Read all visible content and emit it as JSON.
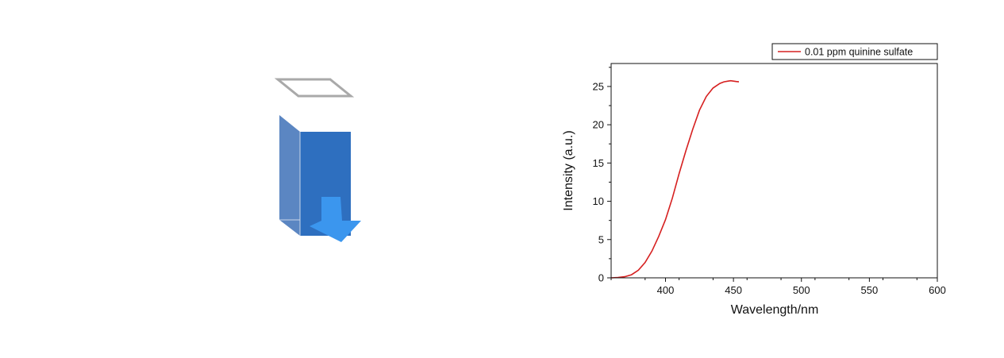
{
  "illustration": {
    "icon": "cuvette-with-emission-arrow-icon",
    "colors": {
      "lid": "#a9a9a9",
      "front_face": "#2e6fbf",
      "side_face": "#5b86c2",
      "arrow": "#3b96ee"
    }
  },
  "chart_data": {
    "type": "line",
    "title": "",
    "xlabel": "Wavelength/nm",
    "ylabel": "Intensity (a.u.)",
    "xlim": [
      360,
      600
    ],
    "ylim": [
      0,
      28
    ],
    "xticks": [
      400,
      450,
      500,
      550,
      600
    ],
    "yticks": [
      0,
      5,
      10,
      15,
      20,
      25
    ],
    "grid": false,
    "legend_position": "top-right",
    "series": [
      {
        "name": "0.01 ppm quinine sulfate",
        "color": "#d62020",
        "x": [
          360,
          365,
          370,
          375,
          380,
          385,
          390,
          395,
          400,
          405,
          410,
          415,
          420,
          425,
          430,
          435,
          440,
          443,
          446,
          448,
          450,
          452,
          454
        ],
        "y": [
          0.0,
          0.05,
          0.15,
          0.4,
          1.0,
          2.0,
          3.5,
          5.4,
          7.6,
          10.4,
          13.6,
          16.6,
          19.4,
          21.9,
          23.7,
          24.8,
          25.4,
          25.6,
          25.7,
          25.75,
          25.7,
          25.65,
          25.6
        ]
      }
    ]
  }
}
